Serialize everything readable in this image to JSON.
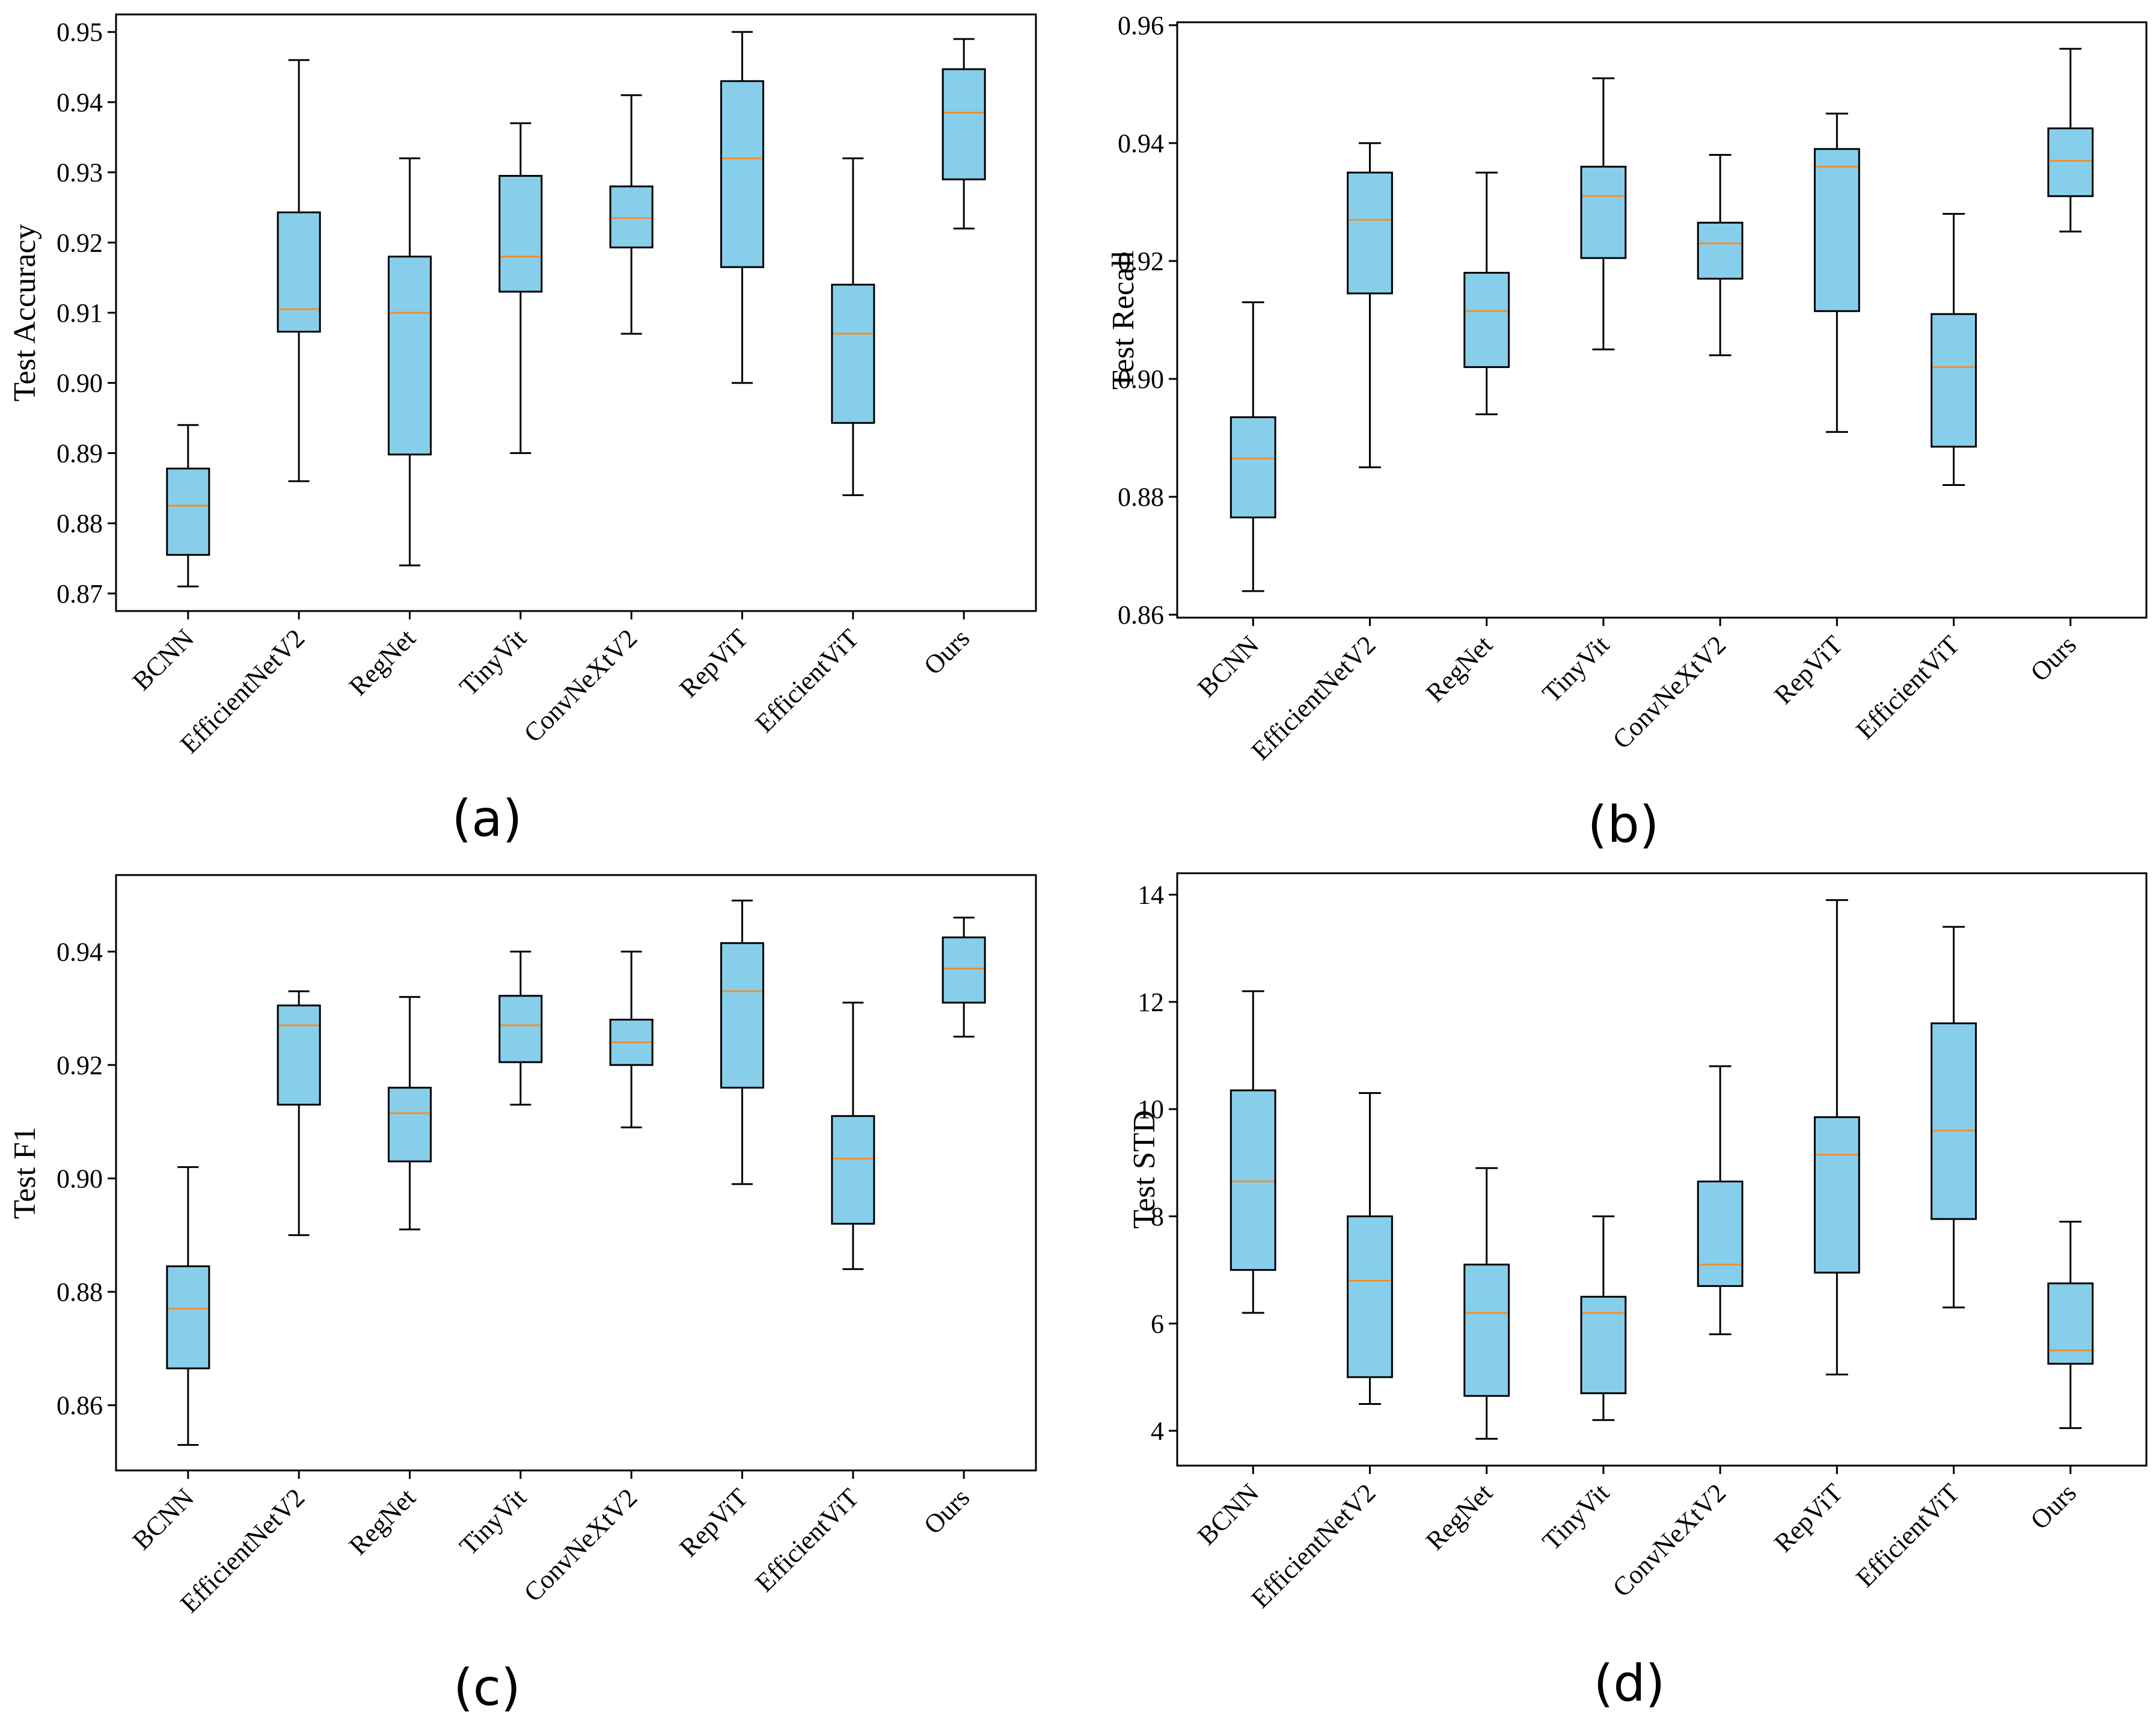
{
  "figure": {
    "colors": {
      "box_fill": "#87CEEB",
      "box_edge": "#000000",
      "median": "#F28E2B",
      "whisker": "#000000"
    }
  },
  "chart_data": [
    {
      "type": "box",
      "panel_label": "(a)",
      "ylabel": "Test Accuracy",
      "ylim": [
        0.8675,
        0.9525
      ],
      "yticks": [
        0.87,
        0.88,
        0.89,
        0.9,
        0.91,
        0.92,
        0.93,
        0.94,
        0.95
      ],
      "ytick_labels": [
        "0.87",
        "0.88",
        "0.89",
        "0.90",
        "0.91",
        "0.92",
        "0.93",
        "0.94",
        "0.95"
      ],
      "categories": [
        "BCNN",
        "EfficientNetV2",
        "RegNet",
        "TinyVit",
        "ConvNeXtV2",
        "RepViT",
        "EfficientViT",
        "Ours"
      ],
      "boxes": [
        {
          "min": 0.871,
          "q1": 0.8755,
          "median": 0.8825,
          "q3": 0.8878,
          "max": 0.894
        },
        {
          "min": 0.886,
          "q1": 0.9073,
          "median": 0.9105,
          "q3": 0.9243,
          "max": 0.946
        },
        {
          "min": 0.874,
          "q1": 0.8898,
          "median": 0.91,
          "q3": 0.918,
          "max": 0.932
        },
        {
          "min": 0.89,
          "q1": 0.913,
          "median": 0.918,
          "q3": 0.9295,
          "max": 0.937
        },
        {
          "min": 0.907,
          "q1": 0.9193,
          "median": 0.9235,
          "q3": 0.928,
          "max": 0.941
        },
        {
          "min": 0.9,
          "q1": 0.9165,
          "median": 0.932,
          "q3": 0.943,
          "max": 0.95
        },
        {
          "min": 0.884,
          "q1": 0.8943,
          "median": 0.907,
          "q3": 0.914,
          "max": 0.932
        },
        {
          "min": 0.922,
          "q1": 0.929,
          "median": 0.9385,
          "q3": 0.9447,
          "max": 0.949
        }
      ]
    },
    {
      "type": "box",
      "panel_label": "(b)",
      "ylabel": "Test Recall",
      "ylim": [
        0.8595,
        0.9605
      ],
      "yticks": [
        0.86,
        0.88,
        0.9,
        0.92,
        0.94,
        0.96
      ],
      "ytick_labels": [
        "0.86",
        "0.88",
        "0.90",
        "0.92",
        "0.94",
        "0.96"
      ],
      "categories": [
        "BCNN",
        "EfficientNetV2",
        "RegNet",
        "TinyVit",
        "ConvNeXtV2",
        "RepViT",
        "EfficientViT",
        "Ours"
      ],
      "boxes": [
        {
          "min": 0.864,
          "q1": 0.8765,
          "median": 0.8865,
          "q3": 0.8935,
          "max": 0.913
        },
        {
          "min": 0.885,
          "q1": 0.9145,
          "median": 0.927,
          "q3": 0.935,
          "max": 0.94
        },
        {
          "min": 0.894,
          "q1": 0.902,
          "median": 0.9115,
          "q3": 0.918,
          "max": 0.935
        },
        {
          "min": 0.905,
          "q1": 0.9205,
          "median": 0.931,
          "q3": 0.936,
          "max": 0.951
        },
        {
          "min": 0.904,
          "q1": 0.917,
          "median": 0.923,
          "q3": 0.9265,
          "max": 0.938
        },
        {
          "min": 0.891,
          "q1": 0.9115,
          "median": 0.936,
          "q3": 0.939,
          "max": 0.945
        },
        {
          "min": 0.882,
          "q1": 0.8885,
          "median": 0.902,
          "q3": 0.911,
          "max": 0.928
        },
        {
          "min": 0.925,
          "q1": 0.931,
          "median": 0.937,
          "q3": 0.9425,
          "max": 0.956
        }
      ]
    },
    {
      "type": "box",
      "panel_label": "(c)",
      "ylabel": "Test F1",
      "ylim": [
        0.8485,
        0.9535
      ],
      "yticks": [
        0.86,
        0.88,
        0.9,
        0.92,
        0.94
      ],
      "ytick_labels": [
        "0.86",
        "0.88",
        "0.90",
        "0.92",
        "0.94"
      ],
      "categories": [
        "BCNN",
        "EfficientNetV2",
        "RegNet",
        "TinyVit",
        "ConvNeXtV2",
        "RepViT",
        "EfficientViT",
        "Ours"
      ],
      "boxes": [
        {
          "min": 0.853,
          "q1": 0.8665,
          "median": 0.877,
          "q3": 0.8845,
          "max": 0.902
        },
        {
          "min": 0.89,
          "q1": 0.913,
          "median": 0.927,
          "q3": 0.9305,
          "max": 0.933
        },
        {
          "min": 0.891,
          "q1": 0.903,
          "median": 0.9115,
          "q3": 0.916,
          "max": 0.932
        },
        {
          "min": 0.913,
          "q1": 0.9205,
          "median": 0.927,
          "q3": 0.9322,
          "max": 0.94
        },
        {
          "min": 0.909,
          "q1": 0.92,
          "median": 0.924,
          "q3": 0.928,
          "max": 0.94
        },
        {
          "min": 0.899,
          "q1": 0.916,
          "median": 0.933,
          "q3": 0.9415,
          "max": 0.949
        },
        {
          "min": 0.884,
          "q1": 0.892,
          "median": 0.9035,
          "q3": 0.911,
          "max": 0.931
        },
        {
          "min": 0.925,
          "q1": 0.931,
          "median": 0.937,
          "q3": 0.9425,
          "max": 0.946
        }
      ]
    },
    {
      "type": "box",
      "panel_label": "(d)",
      "ylabel": "Test STD",
      "ylim": [
        3.35,
        14.4
      ],
      "yticks": [
        4,
        6,
        8,
        10,
        12,
        14
      ],
      "ytick_labels": [
        "4",
        "6",
        "8",
        "10",
        "12",
        "14"
      ],
      "categories": [
        "BCNN",
        "EfficientNetV2",
        "RegNet",
        "TinyVit",
        "ConvNeXtV2",
        "RepViT",
        "EfficientViT",
        "Ours"
      ],
      "boxes": [
        {
          "min": 6.2,
          "q1": 7.0,
          "median": 8.65,
          "q3": 10.35,
          "max": 12.2
        },
        {
          "min": 4.5,
          "q1": 5.0,
          "median": 6.8,
          "q3": 8.0,
          "max": 10.3
        },
        {
          "min": 3.85,
          "q1": 4.65,
          "median": 6.2,
          "q3": 7.1,
          "max": 8.9
        },
        {
          "min": 4.2,
          "q1": 4.7,
          "median": 6.2,
          "q3": 6.5,
          "max": 8.0
        },
        {
          "min": 5.8,
          "q1": 6.7,
          "median": 7.1,
          "q3": 8.65,
          "max": 10.8
        },
        {
          "min": 5.05,
          "q1": 6.95,
          "median": 9.15,
          "q3": 9.85,
          "max": 13.9
        },
        {
          "min": 6.3,
          "q1": 7.95,
          "median": 9.6,
          "q3": 11.6,
          "max": 13.4
        },
        {
          "min": 4.05,
          "q1": 5.25,
          "median": 5.5,
          "q3": 6.75,
          "max": 7.9
        }
      ]
    }
  ]
}
